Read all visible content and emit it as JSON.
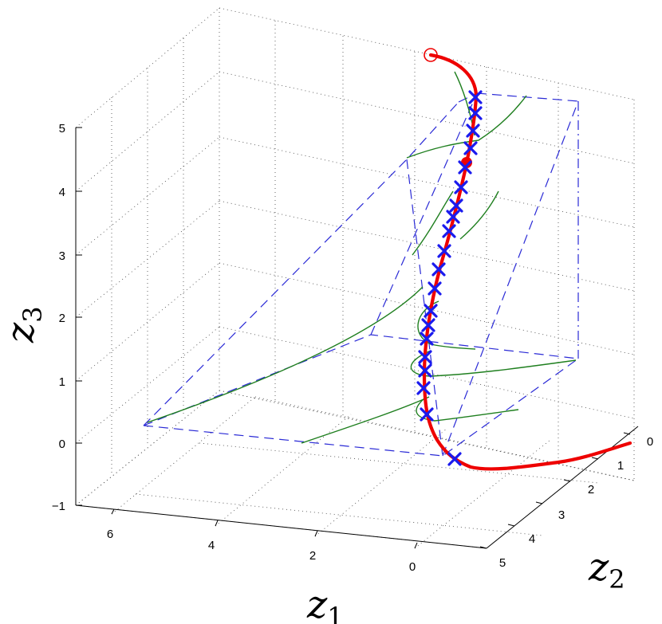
{
  "chart_data": {
    "type": "line",
    "projection": "3d",
    "title": "",
    "xlabel": {
      "base": "z",
      "sub": "1"
    },
    "ylabel": {
      "base": "z",
      "sub": "2"
    },
    "zlabel": {
      "base": "z",
      "sub": "3"
    },
    "xlim": [
      -1,
      7
    ],
    "ylim": [
      0,
      5
    ],
    "zlim": [
      -1,
      5
    ],
    "x_ticks": [
      "6",
      "4",
      "2",
      "0"
    ],
    "y_ticks": [
      "0",
      "1",
      "2",
      "3",
      "4",
      "5"
    ],
    "z_ticks": [
      "5",
      "4",
      "3",
      "2",
      "1",
      "0",
      "−1"
    ],
    "grid": true,
    "colors": {
      "trajectory": "#ee0000",
      "samples": "#1a1aee",
      "flow_lines": "#1f7f1f",
      "region_box": "#2a2ad6"
    },
    "series": [
      {
        "marker": "open-circle-start",
        "count_points": 1
      },
      {
        "marker": "x",
        "count_points": 20
      },
      {
        "marker": "filled-circle",
        "count_points": 1
      },
      {
        "style": "thin-lines",
        "count_lines": 9
      },
      {
        "style": "dashed-region-box"
      }
    ]
  }
}
